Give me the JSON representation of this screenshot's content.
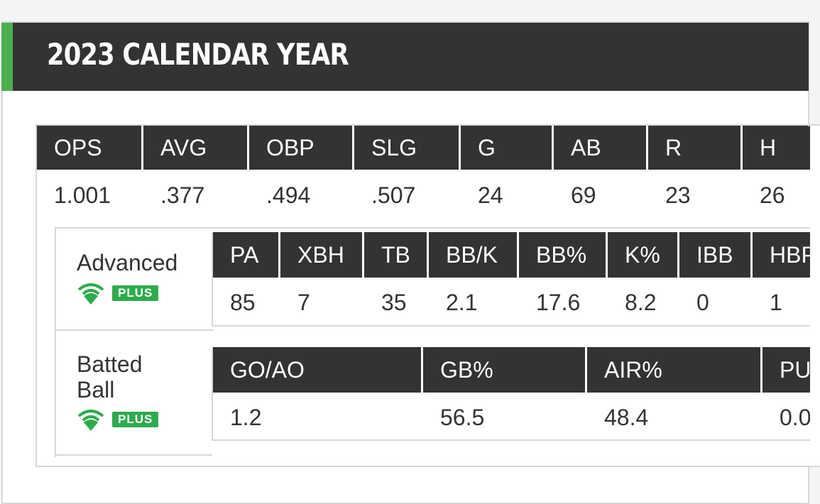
{
  "header": {
    "title": "2023 CALENDAR YEAR"
  },
  "standard": {
    "columns": [
      "OPS",
      "AVG",
      "OBP",
      "SLG",
      "G",
      "AB",
      "R",
      "H"
    ],
    "values": [
      "1.001",
      ".377",
      ".494",
      ".507",
      "24",
      "69",
      "23",
      "26"
    ]
  },
  "advanced": {
    "label": "Advanced",
    "badge": "PLUS",
    "columns": [
      "PA",
      "XBH",
      "TB",
      "BB/K",
      "BB%",
      "K%",
      "IBB",
      "HBP"
    ],
    "values": [
      "85",
      "7",
      "35",
      "2.1",
      "17.6",
      "8.2",
      "0",
      "1"
    ]
  },
  "batted_ball": {
    "label_line1": "Batted",
    "label_line2": "Ball",
    "badge": "PLUS",
    "columns": [
      "GO/AO",
      "GB%",
      "AIR%",
      "PU%"
    ],
    "values": [
      "1.2",
      "56.5",
      "48.4",
      "0.0"
    ]
  },
  "colors": {
    "header_bg": "#333333",
    "accent": "#4caf50",
    "plus_badge": "#2eab4c"
  }
}
